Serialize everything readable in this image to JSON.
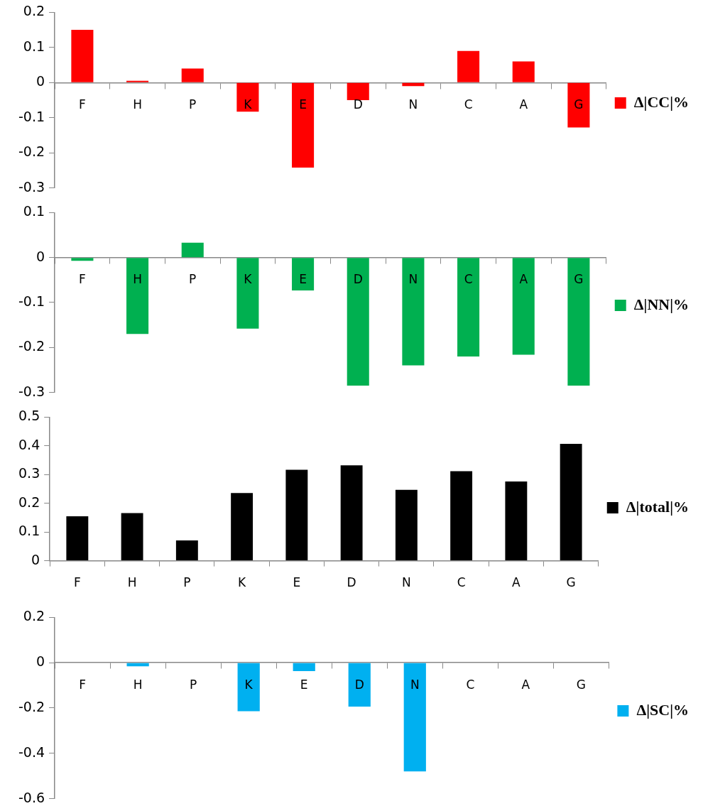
{
  "chart_data": [
    {
      "type": "bar",
      "categories": [
        "F",
        "H",
        "P",
        "K",
        "E",
        "D",
        "N",
        "C",
        "A",
        "G"
      ],
      "series": [
        {
          "name": "Δ|CC|%",
          "color": "#ff0000",
          "values": [
            0.15,
            0.005,
            0.04,
            -0.083,
            -0.242,
            -0.05,
            -0.01,
            0.09,
            0.06,
            -0.128
          ]
        }
      ],
      "ylim": [
        -0.3,
        0.2
      ],
      "yticks": [
        -0.3,
        -0.2,
        -0.1,
        0,
        0.1,
        0.2
      ],
      "grid": false,
      "legend": "right"
    },
    {
      "type": "bar",
      "categories": [
        "F",
        "H",
        "P",
        "K",
        "E",
        "D",
        "N",
        "C",
        "A",
        "G"
      ],
      "series": [
        {
          "name": "Δ|NN|%",
          "color": "#00b050",
          "values": [
            -0.007,
            -0.17,
            0.033,
            -0.158,
            -0.073,
            -0.285,
            -0.24,
            -0.22,
            -0.216,
            -0.285
          ]
        }
      ],
      "ylim": [
        -0.3,
        0.1
      ],
      "yticks": [
        -0.3,
        -0.2,
        -0.1,
        0,
        0.1
      ],
      "grid": false,
      "legend": "right"
    },
    {
      "type": "bar",
      "categories": [
        "F",
        "H",
        "P",
        "K",
        "E",
        "D",
        "N",
        "C",
        "A",
        "G"
      ],
      "series": [
        {
          "name": "Δ|total|%",
          "color": "#000000",
          "values": [
            0.155,
            0.166,
            0.071,
            0.236,
            0.317,
            0.332,
            0.247,
            0.312,
            0.276,
            0.407
          ]
        }
      ],
      "ylim": [
        0,
        0.5
      ],
      "yticks": [
        0,
        0.1,
        0.2,
        0.3,
        0.4,
        0.5
      ],
      "grid": false,
      "legend": "right"
    },
    {
      "type": "bar",
      "categories": [
        "F",
        "H",
        "P",
        "K",
        "E",
        "D",
        "N",
        "C",
        "A",
        "G"
      ],
      "series": [
        {
          "name": "Δ|SC|%",
          "color": "#00b0f0",
          "values": [
            0,
            -0.016,
            0,
            -0.214,
            -0.037,
            -0.194,
            -0.48,
            0,
            0,
            0
          ]
        }
      ],
      "ylim": [
        -0.6,
        0.2
      ],
      "yticks": [
        -0.6,
        -0.4,
        -0.2,
        0,
        0.2
      ],
      "grid": false,
      "legend": "right"
    }
  ]
}
